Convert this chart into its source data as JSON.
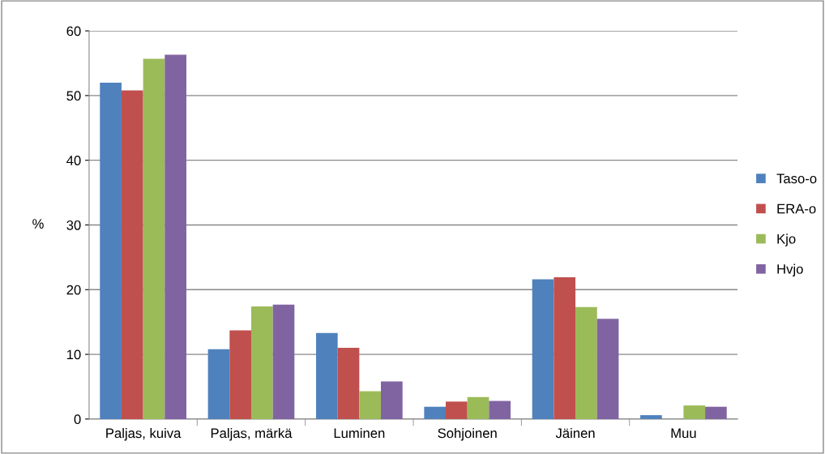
{
  "chart_data": {
    "type": "bar",
    "ylabel": "%",
    "categories": [
      "Paljas, kuiva",
      "Paljas, märkä",
      "Luminen",
      "Sohjoinen",
      "Jäinen",
      "Muu"
    ],
    "series": [
      {
        "name": "Taso-o",
        "color": "#4f81bd",
        "values": [
          52.0,
          10.8,
          13.3,
          1.9,
          21.6,
          0.6
        ]
      },
      {
        "name": "ERA-o",
        "color": "#c0504d",
        "values": [
          50.8,
          13.7,
          11.0,
          2.7,
          21.9,
          0
        ]
      },
      {
        "name": "Kjo",
        "color": "#9bbb59",
        "values": [
          55.7,
          17.4,
          4.3,
          3.4,
          17.3,
          2.1
        ]
      },
      {
        "name": "Hvjo",
        "color": "#8064a2",
        "values": [
          56.3,
          17.7,
          5.8,
          2.8,
          15.5,
          1.9
        ]
      }
    ],
    "ylim": [
      0,
      60
    ],
    "yticks": [
      0,
      10,
      20,
      30,
      40,
      50,
      60
    ],
    "grid": "y",
    "legend": "right"
  }
}
